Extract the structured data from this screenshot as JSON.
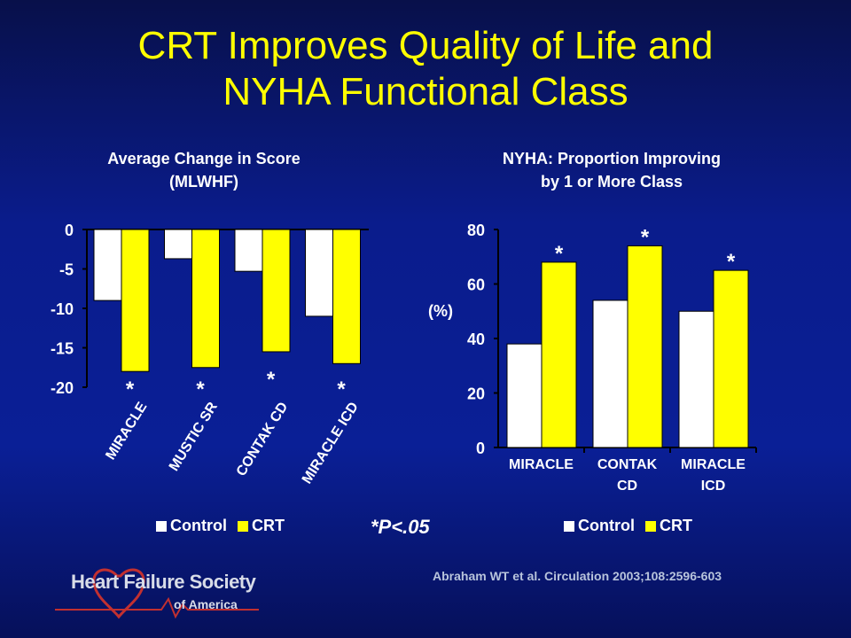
{
  "slide_title_line1": "CRT Improves Quality of Life and",
  "slide_title_line2": "NYHA Functional Class",
  "left_chart_title_line1": "Average Change in Score",
  "left_chart_title_line2": "(MLWHF)",
  "right_chart_title_line1": "NYHA: Proportion Improving",
  "right_chart_title_line2": "by 1 or More Class",
  "significance_note": "*P<.05",
  "citation": "Abraham WT et al. Circulation 2003;108:2596-603",
  "logo_main": "Heart Failure Society",
  "logo_sub": "of America",
  "colors": {
    "control": "#ffffff",
    "crt": "#ffff00",
    "title": "#ffff00"
  },
  "chart_data": [
    {
      "type": "bar",
      "categories": [
        "MIRACLE",
        "MUSTIC SR",
        "CONTAK CD",
        "MIRACLE ICD"
      ],
      "series": [
        {
          "name": "Control",
          "values": [
            -9,
            -3.7,
            -5.3,
            -11
          ]
        },
        {
          "name": "CRT",
          "values": [
            -18,
            -17.5,
            -15.5,
            -17
          ]
        }
      ],
      "ylim": [
        -20,
        0
      ],
      "yticks": [
        "0",
        "-5",
        "-10",
        "-15",
        "-20"
      ],
      "significant": [
        true,
        true,
        true,
        true
      ],
      "legend": [
        "Control",
        "CRT"
      ]
    },
    {
      "type": "bar",
      "categories": [
        "MIRACLE",
        "CONTAK CD",
        "MIRACLE ICD"
      ],
      "category_lines": [
        [
          "MIRACLE"
        ],
        [
          "CONTAK",
          "CD"
        ],
        [
          "MIRACLE",
          "ICD"
        ]
      ],
      "series": [
        {
          "name": "Control",
          "values": [
            38,
            54,
            50
          ]
        },
        {
          "name": "CRT",
          "values": [
            68,
            74,
            65
          ]
        }
      ],
      "ylim": [
        0,
        80
      ],
      "yticks": [
        "0",
        "20",
        "40",
        "60",
        "80"
      ],
      "ylabel": "(%)",
      "significant": [
        true,
        true,
        true
      ],
      "legend": [
        "Control",
        "CRT"
      ]
    }
  ]
}
